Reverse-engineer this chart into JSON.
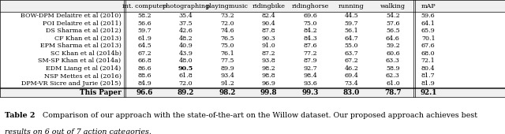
{
  "columns": [
    "int. computer",
    "photographing",
    "playingmusic",
    "ridingbike",
    "ridinghorse",
    "running",
    "walking",
    "mAP"
  ],
  "rows": [
    {
      "name": "BOW-DPM Delaitre et al (2010)",
      "values": [
        "58.2",
        "35.4",
        "73.2",
        "82.4",
        "69.6",
        "44.5",
        "54.2",
        "59.6"
      ],
      "bold_cols": []
    },
    {
      "name": "POI Delaitre et al (2011)",
      "values": [
        "56.6",
        "37.5",
        "72.0",
        "90.4",
        "75.0",
        "59.7",
        "57.6",
        "64.1"
      ],
      "bold_cols": []
    },
    {
      "name": "DS Sharma et al (2012)",
      "values": [
        "59.7",
        "42.6",
        "74.6",
        "87.8",
        "84.2",
        "56.1",
        "56.5",
        "65.9"
      ],
      "bold_cols": []
    },
    {
      "name": "CF Khan et al (2013)",
      "values": [
        "61.9",
        "48.2",
        "76.5",
        "90.3",
        "84.3",
        "64.7",
        "64.6",
        "70.1"
      ],
      "bold_cols": []
    },
    {
      "name": "EPM Sharma et al (2013)",
      "values": [
        "64.5",
        "40.9",
        "75.0",
        "91.0",
        "87.6",
        "55.0",
        "59.2",
        "67.6"
      ],
      "bold_cols": []
    },
    {
      "name": "SC Khan et al (2014b)",
      "values": [
        "67.2",
        "43.9",
        "76.1",
        "87.2",
        "77.2",
        "63.7",
        "60.6",
        "68.0"
      ],
      "bold_cols": []
    },
    {
      "name": "SM-SP Khan et al (2014a)",
      "values": [
        "66.8",
        "48.0",
        "77.5",
        "93.8",
        "87.9",
        "67.2",
        "63.3",
        "72.1"
      ],
      "bold_cols": []
    },
    {
      "name": "EDM Liang et al (2014)",
      "values": [
        "86.6",
        "90.5",
        "89.9",
        "98.2",
        "92.7",
        "46.2",
        "58.9",
        "80.4"
      ],
      "bold_cols": [
        1
      ]
    },
    {
      "name": "NSP Mettes et al (2016)",
      "values": [
        "88.6",
        "61.8",
        "93.4",
        "98.8",
        "98.4",
        "69.4",
        "62.3",
        "81.7"
      ],
      "bold_cols": []
    },
    {
      "name": "DPM-VR Sicre and Jurie (2015)",
      "values": [
        "84.9",
        "72.0",
        "91.2",
        "96.9",
        "93.6",
        "73.4",
        "61.0",
        "81.9"
      ],
      "bold_cols": []
    }
  ],
  "last_row": {
    "name": "This Paper",
    "values": [
      "96.6",
      "89.2",
      "98.2",
      "99.8",
      "99.3",
      "83.0",
      "78.7",
      "92.1"
    ]
  },
  "caption_bold": "Table 2",
  "caption_normal": "  Comparison of our approach with the state-of-the-art on the Willow dataset. Our proposed approach achieves best",
  "caption2": "results on 6 out of 7 action categories.",
  "bg_color": "#f0f0f0",
  "font_size": 5.8,
  "caption_font_size": 6.8
}
